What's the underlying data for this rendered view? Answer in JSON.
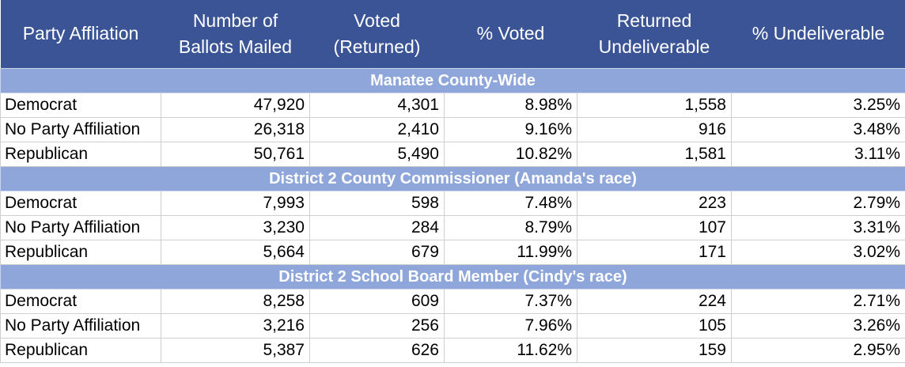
{
  "headers": [
    "Party Affliation",
    "Number of Ballots Mailed",
    "Voted (Returned)",
    "% Voted",
    "Returned Undeliverable",
    "% Undeliverable"
  ],
  "sections": [
    {
      "title": "Manatee County-Wide",
      "rows": [
        [
          "Democrat",
          "47,920",
          "4,301",
          "8.98%",
          "1,558",
          "3.25%"
        ],
        [
          "No Party Affiliation",
          "26,318",
          "2,410",
          "9.16%",
          "916",
          "3.48%"
        ],
        [
          "Republican",
          "50,761",
          "5,490",
          "10.82%",
          "1,581",
          "3.11%"
        ]
      ]
    },
    {
      "title": "District 2 County Commissioner (Amanda's race)",
      "rows": [
        [
          "Democrat",
          "7,993",
          "598",
          "7.48%",
          "223",
          "2.79%"
        ],
        [
          "No Party Affiliation",
          "3,230",
          "284",
          "8.79%",
          "107",
          "3.31%"
        ],
        [
          "Republican",
          "5,664",
          "679",
          "11.99%",
          "171",
          "3.02%"
        ]
      ]
    },
    {
      "title": "District 2 School Board Member (Cindy's race)",
      "rows": [
        [
          "Democrat",
          "8,258",
          "609",
          "7.37%",
          "224",
          "2.71%"
        ],
        [
          "No Party Affiliation",
          "3,216",
          "256",
          "7.96%",
          "105",
          "3.26%"
        ],
        [
          "Republican",
          "5,387",
          "626",
          "11.62%",
          "159",
          "2.95%"
        ]
      ]
    }
  ]
}
